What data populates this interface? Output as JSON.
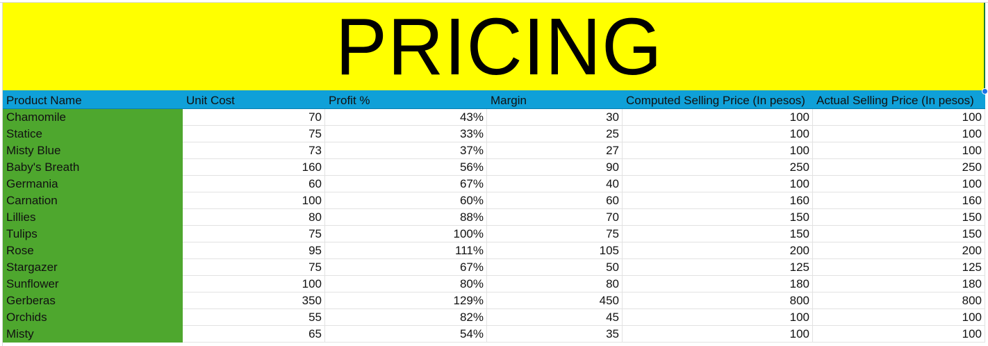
{
  "sheet": {
    "title": "PRICING",
    "colors": {
      "banner": "#ffff00",
      "header": "#0fa0d8",
      "name_column": "#4ea72e"
    },
    "columns": [
      "Product Name",
      "Unit Cost",
      "Profit %",
      "Margin",
      "Computed Selling Price (In pesos)",
      "Actual Selling Price (In pesos)"
    ],
    "rows": [
      [
        "Chamomile",
        "70",
        "43%",
        "30",
        "100",
        "100"
      ],
      [
        "Statice",
        "75",
        "33%",
        "25",
        "100",
        "100"
      ],
      [
        "Misty Blue",
        "73",
        "37%",
        "27",
        "100",
        "100"
      ],
      [
        "Baby's Breath",
        "160",
        "56%",
        "90",
        "250",
        "250"
      ],
      [
        "Germania",
        "60",
        "67%",
        "40",
        "100",
        "100"
      ],
      [
        "Carnation",
        "100",
        "60%",
        "60",
        "160",
        "160"
      ],
      [
        "Lillies",
        "80",
        "88%",
        "70",
        "150",
        "150"
      ],
      [
        "Tulips",
        "75",
        "100%",
        "75",
        "150",
        "150"
      ],
      [
        "Rose",
        "95",
        "111%",
        "105",
        "200",
        "200"
      ],
      [
        "Stargazer",
        "75",
        "67%",
        "50",
        "125",
        "125"
      ],
      [
        "Sunflower",
        "100",
        "80%",
        "80",
        "180",
        "180"
      ],
      [
        "Gerberas",
        "350",
        "129%",
        "450",
        "800",
        "800"
      ],
      [
        "Orchids",
        "55",
        "82%",
        "45",
        "100",
        "100"
      ],
      [
        "Misty",
        "65",
        "54%",
        "35",
        "100",
        "100"
      ]
    ]
  }
}
